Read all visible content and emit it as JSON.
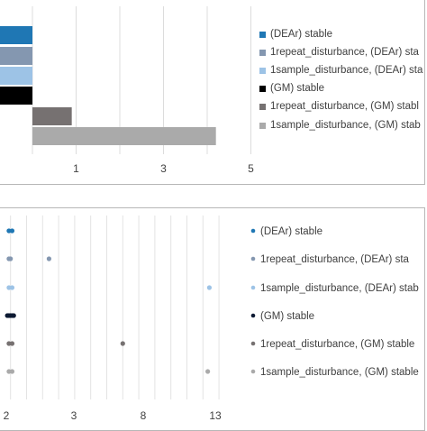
{
  "chart_data": [
    {
      "type": "bar",
      "orientation": "horizontal",
      "grid": true,
      "legend_position": "right",
      "x_ticks": [
        "1",
        "3",
        "5"
      ],
      "series": [
        {
          "name": "(DEAr) stable",
          "color": "#1f77b4",
          "start": -1.5,
          "end": 0
        },
        {
          "name": "1repeat_disturbance, (DEAr) sta",
          "color": "#8497b0",
          "start": -1.5,
          "end": 0
        },
        {
          "name": "1sample_disturbance, (DEAr) sta",
          "color": "#9dc3e6",
          "start": -1.5,
          "end": 0
        },
        {
          "name": "(GM) stable",
          "color": "#000000",
          "start": -1.5,
          "end": 0
        },
        {
          "name": "1repeat_disturbance, (GM) stabl",
          "color": "#767171",
          "start": 0,
          "end": 0.9
        },
        {
          "name": "1sample_disturbance, (GM) stab",
          "color": "#aaaaaa",
          "start": 0,
          "end": 4.2
        }
      ]
    },
    {
      "type": "scatter",
      "grid": true,
      "legend_position": "right",
      "x_ticks": [
        "2",
        "3",
        "8",
        "13"
      ],
      "series": [
        {
          "name": "(DEAr) stable",
          "color": "#1f77b4",
          "points": [
            1.9,
            2.1
          ]
        },
        {
          "name": "1repeat_disturbance, (DEAr) sta",
          "color": "#8497b0",
          "points": [
            1.9,
            2.0,
            4.4
          ]
        },
        {
          "name": "1sample_disturbance, (DEAr) stab",
          "color": "#9dc3e6",
          "points": [
            1.9,
            2.1,
            14.4
          ]
        },
        {
          "name": "(GM) stable",
          "color": "#0d1a33",
          "points": [
            1.8,
            1.9,
            2.0,
            2.1,
            2.2
          ]
        },
        {
          "name": "1repeat_disturbance, (GM) stable",
          "color": "#767171",
          "points": [
            1.9,
            2.1,
            9.0
          ]
        },
        {
          "name": "1sample_disturbance, (GM) stable",
          "color": "#aaaaaa",
          "points": [
            1.9,
            2.1,
            14.3
          ]
        }
      ]
    }
  ]
}
